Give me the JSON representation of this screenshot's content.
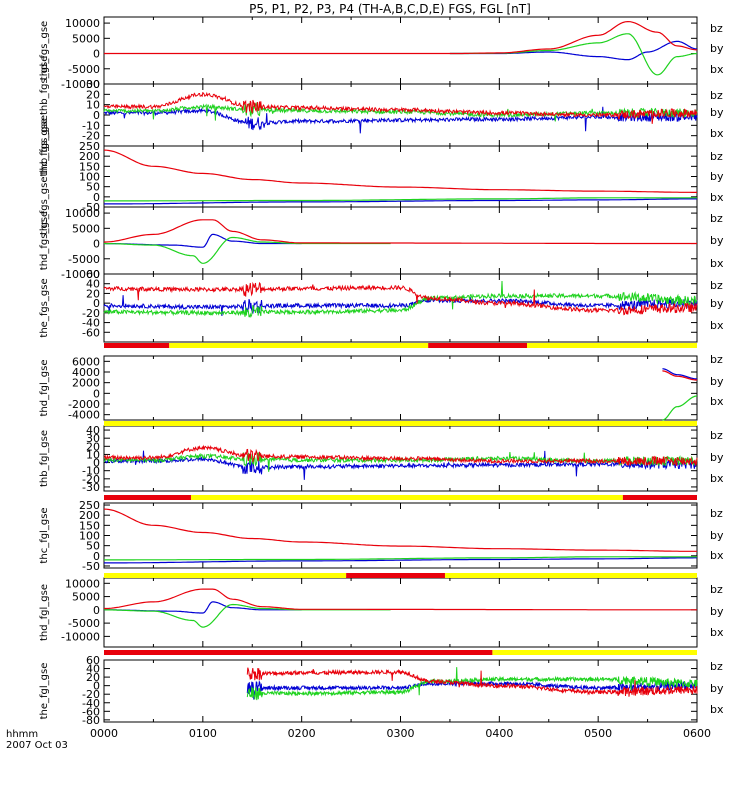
{
  "chart_data": {
    "type": "line",
    "title": "P5, P1, P2, P3, P4 (TH-A,B,C,D,E) FGS, FGL [nT]",
    "xlabel_line1": "hhmm",
    "xlabel_line2": "2007 Oct 03",
    "x_tick_labels": [
      "0000",
      "0100",
      "0200",
      "0300",
      "0400",
      "0500",
      "0600"
    ],
    "xlim": [
      0,
      6
    ],
    "legend": [
      "bz",
      "by",
      "bx"
    ],
    "colors": {
      "bz": "#e8000b",
      "by": "#1ed21e",
      "bx": "#0000d4",
      "bar_on": "#e8000b",
      "bar_off": "#ffff00"
    },
    "panels": [
      {
        "ylabel": "thd_fgs_gse",
        "ylim": [
          -10000,
          12000
        ],
        "yticks": [
          "10000",
          "5000",
          "0",
          "-5000",
          "-10000"
        ],
        "ytick_values": [
          10000,
          5000,
          0,
          -5000,
          -10000
        ],
        "kind": "smooth",
        "series": [
          {
            "name": "bz",
            "t": [
              0,
              3.5,
              4,
              4.5,
              5,
              5.3,
              5.6,
              5.8,
              6
            ],
            "v": [
              0,
              0,
              200,
              1500,
              6000,
              10500,
              7000,
              2500,
              1200
            ]
          },
          {
            "name": "by",
            "t": [
              3.5,
              4,
              4.5,
              5,
              5.3,
              5.6,
              5.8,
              6
            ],
            "v": [
              0,
              100,
              1000,
              3500,
              6500,
              -7000,
              -1000,
              0
            ]
          },
          {
            "name": "bx",
            "t": [
              3.5,
              4,
              4.5,
              5,
              5.3,
              5.5,
              5.8,
              6
            ],
            "v": [
              0,
              0,
              500,
              -1000,
              -2000,
              500,
              4000,
              1500
            ]
          }
        ]
      },
      {
        "ylabel": "thb_fgs_gsethb_fgs_gse",
        "ylim": [
          -30,
          30
        ],
        "yticks": [
          "30",
          "20",
          "10",
          "0",
          "-10",
          "-20"
        ],
        "ytick_values": [
          30,
          20,
          10,
          0,
          -10,
          -20
        ],
        "kind": "noisy",
        "series": [
          {
            "name": "bz",
            "t": [
              0,
              0.5,
              1,
              1.5,
              2,
              3,
              4,
              5,
              6
            ],
            "v": [
              8,
              8,
              20,
              8,
              7,
              5,
              2,
              0,
              2
            ]
          },
          {
            "name": "by",
            "t": [
              0,
              0.5,
              1,
              1.5,
              2,
              3,
              4,
              5,
              6
            ],
            "v": [
              4,
              4,
              8,
              5,
              4,
              3,
              0,
              2,
              2
            ]
          },
          {
            "name": "bx",
            "t": [
              0,
              0.5,
              1,
              1.5,
              2,
              3,
              4,
              5,
              6
            ],
            "v": [
              2,
              2,
              4,
              -8,
              -6,
              -5,
              -4,
              -2,
              -2
            ]
          }
        ]
      },
      {
        "ylabel": "thc_fgs_gsethc_fgs_gse",
        "ylim": [
          -50,
          250
        ],
        "yticks": [
          "250",
          "200",
          "150",
          "100",
          "50",
          "0",
          "-50"
        ],
        "ytick_values": [
          250,
          200,
          150,
          100,
          50,
          0,
          -50
        ],
        "kind": "smooth",
        "series": [
          {
            "name": "bz",
            "t": [
              0,
              0.5,
              1,
              1.5,
              2,
              3,
              4,
              5,
              6
            ],
            "v": [
              230,
              150,
              115,
              85,
              68,
              48,
              35,
              28,
              22
            ]
          },
          {
            "name": "by",
            "t": [
              0,
              2,
              4,
              5,
              6
            ],
            "v": [
              -20,
              -18,
              -10,
              -5,
              -5
            ]
          },
          {
            "name": "bx",
            "t": [
              0,
              2,
              4,
              5,
              6
            ],
            "v": [
              -35,
              -25,
              -18,
              -15,
              -10
            ]
          }
        ]
      },
      {
        "ylabel": "thd_fgs_gse",
        "ylim": [
          -10000,
          12000
        ],
        "yticks": [
          "10000",
          "5000",
          "0",
          "-5000",
          "-10000"
        ],
        "ytick_values": [
          10000,
          5000,
          0,
          -5000,
          -10000
        ],
        "kind": "smooth",
        "series": [
          {
            "name": "bz",
            "t": [
              0,
              0.5,
              1,
              1.1,
              1.3,
              1.6,
              2,
              6
            ],
            "v": [
              500,
              3000,
              7800,
              7800,
              4000,
              1200,
              200,
              0
            ]
          },
          {
            "name": "by",
            "t": [
              0,
              0.5,
              0.9,
              1.0,
              1.3,
              1.6,
              2,
              2.9
            ],
            "v": [
              0,
              -500,
              -4000,
              -6500,
              2000,
              500,
              0,
              0
            ]
          },
          {
            "name": "bx",
            "t": [
              0,
              0.7,
              1.0,
              1.1,
              1.3,
              1.6,
              2
            ],
            "v": [
              0,
              -500,
              -1200,
              3000,
              800,
              0,
              0
            ]
          }
        ]
      },
      {
        "ylabel": "the_fgs_gse",
        "ylim": [
          -80,
          60
        ],
        "yticks": [
          "60",
          "40",
          "20",
          "0",
          "-20",
          "-40",
          "-60"
        ],
        "ytick_values": [
          60,
          40,
          20,
          0,
          -20,
          -40,
          -60
        ],
        "kind": "noisy",
        "series": [
          {
            "name": "bz",
            "t": [
              0,
              1,
              2,
              3,
              3.3,
              4,
              5,
              6
            ],
            "v": [
              30,
              28,
              30,
              32,
              10,
              0,
              -15,
              -10
            ]
          },
          {
            "name": "by",
            "t": [
              0,
              1,
              2,
              3,
              3.3,
              4,
              5,
              6
            ],
            "v": [
              -18,
              -20,
              -18,
              -15,
              10,
              15,
              15,
              5
            ]
          },
          {
            "name": "bx",
            "t": [
              0,
              1,
              2,
              3,
              3.3,
              4,
              5,
              6
            ],
            "v": [
              -5,
              -8,
              -5,
              -5,
              5,
              5,
              -5,
              0
            ]
          }
        ]
      },
      {
        "ylabel": "thd_fgl_gse",
        "ylim": [
          -5000,
          7000
        ],
        "yticks": [
          "6000",
          "4000",
          "2000",
          "0",
          "-2000",
          "-4000"
        ],
        "ytick_values": [
          6000,
          4000,
          2000,
          0,
          -2000,
          -4000
        ],
        "kind": "smooth",
        "series": [
          {
            "name": "bz",
            "t": [
              5.65,
              5.8,
              6
            ],
            "v": [
              4200,
              3200,
              2500
            ]
          },
          {
            "name": "bx",
            "t": [
              5.65,
              5.8,
              6
            ],
            "v": [
              4600,
              3500,
              2700
            ]
          },
          {
            "name": "by",
            "t": [
              5.65,
              5.8,
              6
            ],
            "v": [
              -5000,
              -2500,
              -500
            ]
          }
        ]
      },
      {
        "ylabel": "thb_fgl_gse",
        "ylim": [
          -35,
          45
        ],
        "yticks": [
          "40",
          "30",
          "20",
          "10",
          "0",
          "-10",
          "-20",
          "-30"
        ],
        "ytick_values": [
          40,
          30,
          20,
          10,
          0,
          -10,
          -20,
          -30
        ],
        "kind": "noisy",
        "series": [
          {
            "name": "bz",
            "t": [
              0,
              0.5,
              1,
              1.5,
              2,
              3,
              4,
              5,
              6
            ],
            "v": [
              6,
              6,
              18,
              8,
              7,
              5,
              2,
              2,
              2
            ]
          },
          {
            "name": "by",
            "t": [
              0,
              0.5,
              1,
              1.5,
              2,
              3,
              4,
              5,
              6
            ],
            "v": [
              3,
              3,
              8,
              4,
              3,
              3,
              5,
              2,
              2
            ]
          },
          {
            "name": "bx",
            "t": [
              0,
              0.5,
              1,
              1.5,
              2,
              3,
              4,
              5,
              6
            ],
            "v": [
              2,
              2,
              4,
              -6,
              -5,
              -4,
              -3,
              -2,
              -2
            ]
          }
        ]
      },
      {
        "ylabel": "thc_fgl_gse",
        "ylim": [
          -60,
          260
        ],
        "yticks": [
          "250",
          "200",
          "150",
          "100",
          "50",
          "0",
          "-50"
        ],
        "ytick_values": [
          250,
          200,
          150,
          100,
          50,
          0,
          -50
        ],
        "kind": "smooth",
        "series": [
          {
            "name": "bz",
            "t": [
              0,
              0.5,
              1,
              1.5,
              2,
              3,
              4,
              5,
              6
            ],
            "v": [
              230,
              150,
              115,
              85,
              68,
              48,
              35,
              28,
              22
            ]
          },
          {
            "name": "by",
            "t": [
              0,
              2,
              4,
              5,
              6
            ],
            "v": [
              -20,
              -18,
              -10,
              -5,
              -5
            ]
          },
          {
            "name": "bx",
            "t": [
              0,
              2,
              4,
              5,
              6
            ],
            "v": [
              -35,
              -25,
              -18,
              -15,
              -10
            ]
          }
        ]
      },
      {
        "ylabel": "thd_fgl_gse",
        "ylim": [
          -14000,
          12000
        ],
        "yticks": [
          "10000",
          "5000",
          "0",
          "-5000",
          "-10000"
        ],
        "ytick_values": [
          10000,
          5000,
          0,
          -5000,
          -10000
        ],
        "kind": "smooth",
        "series": [
          {
            "name": "bz",
            "t": [
              0,
              0.5,
              1,
              1.1,
              1.3,
              1.6,
              2,
              6
            ],
            "v": [
              500,
              3000,
              7800,
              7800,
              4000,
              1200,
              200,
              0
            ]
          },
          {
            "name": "by",
            "t": [
              0,
              0.5,
              0.9,
              1.0,
              1.3,
              1.6,
              2,
              2.9
            ],
            "v": [
              0,
              -500,
              -4000,
              -6500,
              2000,
              500,
              0,
              0
            ]
          },
          {
            "name": "bx",
            "t": [
              0,
              0.7,
              1.0,
              1.1,
              1.3,
              1.6,
              2
            ],
            "v": [
              0,
              -500,
              -1200,
              3000,
              800,
              0,
              0
            ]
          }
        ]
      },
      {
        "ylabel": "the_fgl_gse",
        "ylim": [
          -85,
          60
        ],
        "yticks": [
          "60",
          "40",
          "20",
          "0",
          "-20",
          "-40",
          "-60",
          "-80"
        ],
        "ytick_values": [
          60,
          40,
          20,
          0,
          -20,
          -40,
          -60,
          -80
        ],
        "kind": "noisy",
        "series": [
          {
            "name": "bz",
            "t": [
              1.45,
              2,
              3,
              3.3,
              4,
              5,
              6
            ],
            "v": [
              28,
              30,
              32,
              10,
              0,
              -15,
              -10
            ]
          },
          {
            "name": "by",
            "t": [
              1.45,
              2,
              3,
              3.3,
              4,
              5,
              6
            ],
            "v": [
              -18,
              -18,
              -15,
              10,
              15,
              15,
              5
            ]
          },
          {
            "name": "bx",
            "t": [
              1.45,
              2,
              3,
              3.3,
              4,
              5,
              6
            ],
            "v": [
              -5,
              -5,
              -5,
              5,
              5,
              -5,
              0
            ]
          }
        ]
      }
    ],
    "status_bars": [
      {
        "after_panel": 4,
        "segments": [
          {
            "from": 0,
            "to": 0.66,
            "state": "on"
          },
          {
            "from": 0.66,
            "to": 3.28,
            "state": "off"
          },
          {
            "from": 3.28,
            "to": 4.28,
            "state": "on"
          },
          {
            "from": 4.28,
            "to": 6,
            "state": "off"
          }
        ]
      },
      {
        "after_panel": 5,
        "segments": [
          {
            "from": 0,
            "to": 6,
            "state": "off"
          }
        ]
      },
      {
        "after_panel": 6,
        "segments": [
          {
            "from": 0,
            "to": 0.88,
            "state": "on"
          },
          {
            "from": 0.88,
            "to": 5.25,
            "state": "off"
          },
          {
            "from": 5.25,
            "to": 6,
            "state": "on"
          }
        ]
      },
      {
        "after_panel": 7,
        "segments": [
          {
            "from": 0,
            "to": 2.45,
            "state": "off"
          },
          {
            "from": 2.45,
            "to": 3.45,
            "state": "on"
          },
          {
            "from": 3.45,
            "to": 6,
            "state": "off"
          }
        ]
      },
      {
        "after_panel": 8,
        "segments": [
          {
            "from": 0,
            "to": 3.93,
            "state": "on"
          },
          {
            "from": 3.93,
            "to": 6,
            "state": "off"
          }
        ]
      }
    ]
  }
}
